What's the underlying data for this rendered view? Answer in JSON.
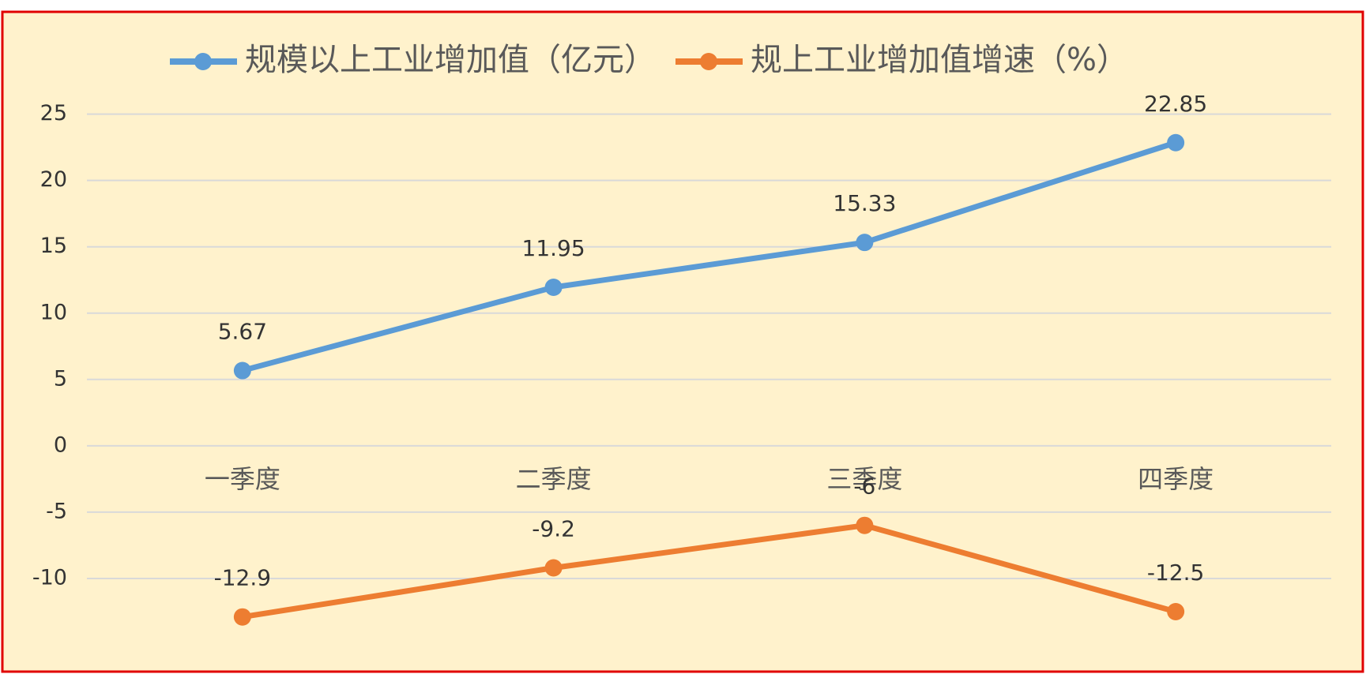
{
  "chart_data": {
    "type": "line",
    "categories": [
      "一季度",
      "二季度",
      "三季度",
      "四季度"
    ],
    "series": [
      {
        "name": "规模以上工业增加值（亿元）",
        "color": "#5b9bd5",
        "values": [
          5.67,
          11.95,
          15.33,
          22.85
        ]
      },
      {
        "name": "规上工业增加值增速（%）",
        "color": "#ed7d31",
        "values": [
          -12.9,
          -9.2,
          -6,
          -12.5
        ]
      }
    ],
    "ylim": [
      -15,
      27
    ],
    "yticks": [
      -10,
      -5,
      0,
      5,
      10,
      15,
      20,
      25
    ],
    "grid": true,
    "legend": "top"
  }
}
